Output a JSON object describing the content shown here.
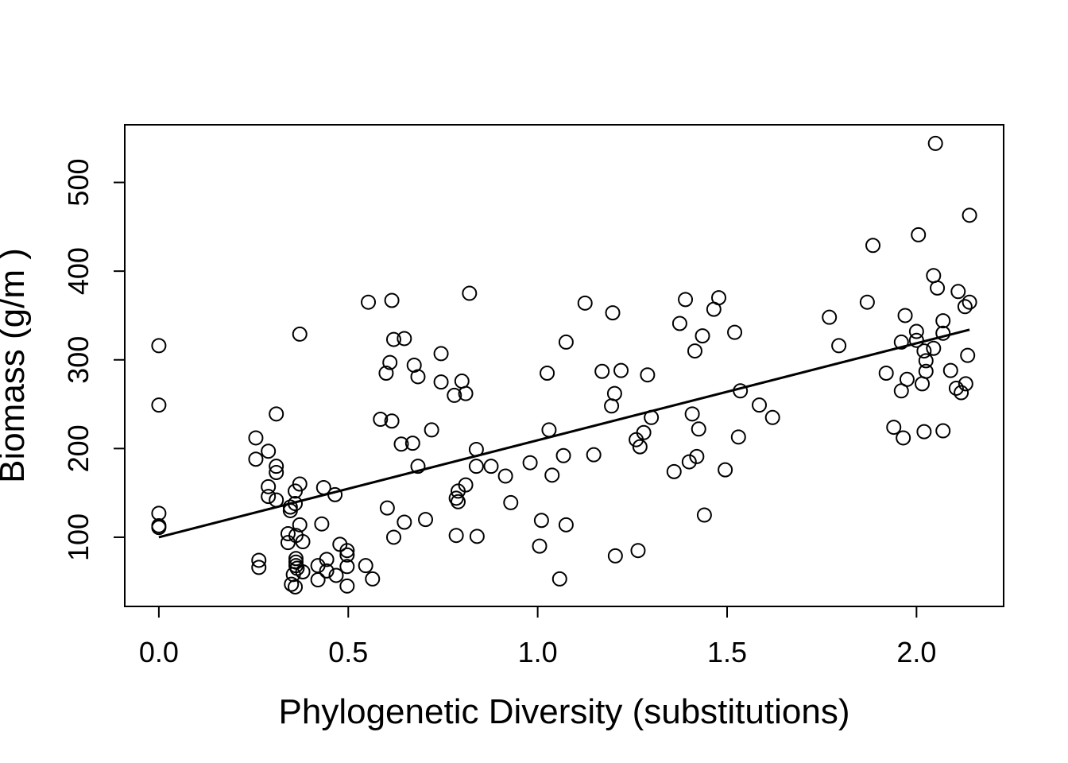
{
  "chart_data": {
    "type": "scatter",
    "title": "",
    "xlabel": "Phylogenetic Diversity (substitutions)",
    "ylabel": "Biomass (g/m )",
    "xlim": [
      -0.09,
      2.23
    ],
    "ylim": [
      22,
      565
    ],
    "x_ticks": [
      0.0,
      0.5,
      1.0,
      1.5,
      2.0
    ],
    "x_tick_labels": [
      "0.0",
      "0.5",
      "1.0",
      "1.5",
      "2.0"
    ],
    "y_ticks": [
      100,
      200,
      300,
      400,
      500
    ],
    "y_tick_labels": [
      "100",
      "200",
      "300",
      "400",
      "500"
    ],
    "grid": false,
    "marker": "open-circle",
    "fit_line": {
      "x": [
        0.0,
        2.14
      ],
      "y": [
        100,
        334
      ]
    },
    "points": [
      [
        0.0,
        316
      ],
      [
        0.0,
        249
      ],
      [
        0.0,
        127
      ],
      [
        0.0,
        113
      ],
      [
        0.0,
        111
      ],
      [
        0.256,
        212
      ],
      [
        0.256,
        188
      ],
      [
        0.264,
        74
      ],
      [
        0.264,
        66
      ],
      [
        0.289,
        197
      ],
      [
        0.289,
        157
      ],
      [
        0.289,
        146
      ],
      [
        0.31,
        239
      ],
      [
        0.31,
        180
      ],
      [
        0.31,
        173
      ],
      [
        0.31,
        142
      ],
      [
        0.341,
        104
      ],
      [
        0.341,
        94
      ],
      [
        0.347,
        130
      ],
      [
        0.347,
        134
      ],
      [
        0.35,
        47
      ],
      [
        0.355,
        58
      ],
      [
        0.36,
        44
      ],
      [
        0.36,
        152
      ],
      [
        0.36,
        138
      ],
      [
        0.362,
        102
      ],
      [
        0.362,
        76
      ],
      [
        0.362,
        72
      ],
      [
        0.362,
        68
      ],
      [
        0.365,
        65
      ],
      [
        0.372,
        329
      ],
      [
        0.372,
        160
      ],
      [
        0.372,
        114
      ],
      [
        0.38,
        95
      ],
      [
        0.38,
        61
      ],
      [
        0.42,
        68
      ],
      [
        0.42,
        52
      ],
      [
        0.43,
        115
      ],
      [
        0.435,
        156
      ],
      [
        0.443,
        75
      ],
      [
        0.443,
        62
      ],
      [
        0.465,
        148
      ],
      [
        0.468,
        57
      ],
      [
        0.478,
        92
      ],
      [
        0.497,
        85
      ],
      [
        0.497,
        80
      ],
      [
        0.497,
        67
      ],
      [
        0.497,
        45
      ],
      [
        0.546,
        68
      ],
      [
        0.553,
        365
      ],
      [
        0.564,
        53
      ],
      [
        0.585,
        233
      ],
      [
        0.6,
        285
      ],
      [
        0.603,
        133
      ],
      [
        0.61,
        297
      ],
      [
        0.615,
        367
      ],
      [
        0.615,
        231
      ],
      [
        0.62,
        323
      ],
      [
        0.62,
        100
      ],
      [
        0.64,
        205
      ],
      [
        0.648,
        324
      ],
      [
        0.648,
        117
      ],
      [
        0.67,
        206
      ],
      [
        0.674,
        294
      ],
      [
        0.684,
        281
      ],
      [
        0.684,
        180
      ],
      [
        0.704,
        120
      ],
      [
        0.72,
        221
      ],
      [
        0.745,
        307
      ],
      [
        0.745,
        275
      ],
      [
        0.78,
        260
      ],
      [
        0.785,
        102
      ],
      [
        0.785,
        144
      ],
      [
        0.79,
        152
      ],
      [
        0.79,
        140
      ],
      [
        0.8,
        276
      ],
      [
        0.81,
        262
      ],
      [
        0.81,
        159
      ],
      [
        0.82,
        375
      ],
      [
        0.838,
        199
      ],
      [
        0.838,
        180
      ],
      [
        0.84,
        101
      ],
      [
        0.877,
        180
      ],
      [
        0.915,
        169
      ],
      [
        0.929,
        139
      ],
      [
        0.98,
        184
      ],
      [
        1.005,
        90
      ],
      [
        1.01,
        119
      ],
      [
        1.025,
        285
      ],
      [
        1.03,
        221
      ],
      [
        1.038,
        170
      ],
      [
        1.058,
        53
      ],
      [
        1.068,
        192
      ],
      [
        1.075,
        320
      ],
      [
        1.075,
        114
      ],
      [
        1.125,
        364
      ],
      [
        1.148,
        193
      ],
      [
        1.17,
        287
      ],
      [
        1.195,
        248
      ],
      [
        1.198,
        353
      ],
      [
        1.203,
        262
      ],
      [
        1.205,
        79
      ],
      [
        1.22,
        288
      ],
      [
        1.26,
        210
      ],
      [
        1.265,
        85
      ],
      [
        1.27,
        202
      ],
      [
        1.28,
        218
      ],
      [
        1.29,
        283
      ],
      [
        1.3,
        235
      ],
      [
        1.36,
        174
      ],
      [
        1.375,
        341
      ],
      [
        1.39,
        368
      ],
      [
        1.4,
        185
      ],
      [
        1.408,
        239
      ],
      [
        1.415,
        310
      ],
      [
        1.42,
        191
      ],
      [
        1.425,
        222
      ],
      [
        1.435,
        327
      ],
      [
        1.44,
        125
      ],
      [
        1.465,
        357
      ],
      [
        1.478,
        370
      ],
      [
        1.495,
        176
      ],
      [
        1.52,
        331
      ],
      [
        1.53,
        213
      ],
      [
        1.535,
        265
      ],
      [
        1.585,
        249
      ],
      [
        1.62,
        235
      ],
      [
        1.77,
        348
      ],
      [
        1.795,
        316
      ],
      [
        1.87,
        365
      ],
      [
        1.885,
        429
      ],
      [
        1.92,
        285
      ],
      [
        1.94,
        224
      ],
      [
        1.96,
        320
      ],
      [
        1.96,
        265
      ],
      [
        1.965,
        212
      ],
      [
        1.97,
        350
      ],
      [
        1.975,
        278
      ],
      [
        2.0,
        332
      ],
      [
        2.0,
        322
      ],
      [
        2.005,
        441
      ],
      [
        2.015,
        273
      ],
      [
        2.02,
        219
      ],
      [
        2.02,
        310
      ],
      [
        2.025,
        299
      ],
      [
        2.025,
        287
      ],
      [
        2.045,
        395
      ],
      [
        2.045,
        313
      ],
      [
        2.05,
        544
      ],
      [
        2.055,
        381
      ],
      [
        2.07,
        344
      ],
      [
        2.07,
        330
      ],
      [
        2.07,
        220
      ],
      [
        2.09,
        288
      ],
      [
        2.105,
        268
      ],
      [
        2.11,
        377
      ],
      [
        2.118,
        263
      ],
      [
        2.128,
        360
      ],
      [
        2.13,
        273
      ],
      [
        2.135,
        305
      ],
      [
        2.14,
        463
      ],
      [
        2.14,
        365
      ]
    ]
  }
}
